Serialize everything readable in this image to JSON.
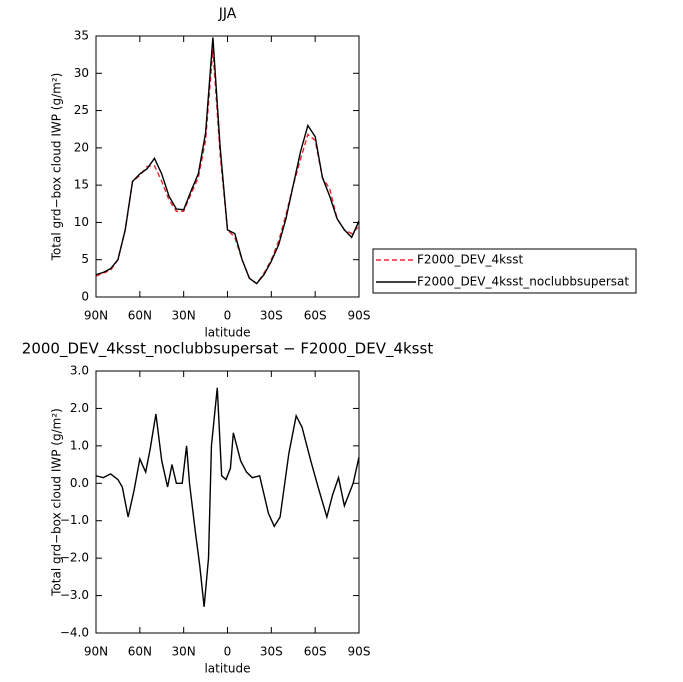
{
  "chart_data": [
    {
      "type": "line",
      "title": "JJA",
      "xlabel": "latitude",
      "ylabel": "Total grd−box cloud IWP (g/m²)",
      "x": [
        90,
        85,
        80,
        75,
        70,
        65,
        60,
        55,
        50,
        45,
        40,
        35,
        30,
        25,
        20,
        15,
        10,
        5,
        0,
        -5,
        -10,
        -15,
        -20,
        -25,
        -30,
        -35,
        -40,
        -45,
        -50,
        -55,
        -60,
        -65,
        -70,
        -75,
        -80,
        -85,
        -90
      ],
      "series": [
        {
          "name": "F2000_DEV_4ksst",
          "color": "#e8262a",
          "style": "dashed",
          "values": [
            2.8,
            3.2,
            3.6,
            5,
            9,
            15.5,
            16.3,
            17.5,
            17.6,
            15.5,
            13,
            11.5,
            11.5,
            13.8,
            16,
            21,
            33.2,
            19,
            9,
            8,
            5,
            2.5,
            1.8,
            3.2,
            5,
            7.5,
            11,
            15,
            18.5,
            21.8,
            21,
            16,
            14.5,
            10.5,
            9,
            8.5,
            9.5
          ]
        },
        {
          "name": "F2000_DEV_4ksst_noclubbsupersat",
          "color": "#000000",
          "style": "solid",
          "values": [
            3.0,
            3.3,
            3.8,
            5.0,
            9.0,
            15.5,
            16.5,
            17.2,
            18.6,
            16.5,
            13.5,
            11.8,
            11.7,
            14.2,
            16.5,
            22,
            34.8,
            20,
            9,
            8.5,
            5,
            2.5,
            1.8,
            3,
            4.8,
            7,
            10.5,
            15,
            19.5,
            23,
            21.5,
            16,
            13.5,
            10.5,
            9,
            8,
            10.2
          ]
        }
      ],
      "xlim": [
        90,
        -90
      ],
      "xticks": [
        {
          "value": 90,
          "label": "90N"
        },
        {
          "value": 60,
          "label": "60N"
        },
        {
          "value": 30,
          "label": "30N"
        },
        0,
        {
          "value": -30,
          "label": "30S"
        },
        {
          "value": -60,
          "label": "60S"
        },
        {
          "value": -90,
          "label": "90S"
        }
      ],
      "ylim": [
        0,
        35
      ],
      "yticks": [
        0,
        5,
        10,
        15,
        20,
        25,
        30,
        35
      ],
      "legend": "right"
    },
    {
      "type": "line",
      "title": "2000_DEV_4ksst_noclubbsupersat − F2000_DEV_4ksst",
      "xlabel": "latitude",
      "ylabel": "Total grd−box cloud IWP (g/m²)",
      "x": [
        90,
        85,
        80,
        75,
        72,
        68,
        64,
        60,
        56,
        53,
        49,
        45,
        41,
        38,
        35,
        31,
        28,
        26,
        22,
        19,
        16,
        13,
        11,
        7,
        4,
        1,
        -2,
        -4,
        -9,
        -13,
        -17,
        -22,
        -28,
        -32,
        -36,
        -42,
        -47,
        -51,
        -57,
        -62,
        -68,
        -72,
        -76,
        -80,
        -86,
        -90
      ],
      "series": [
        {
          "color": "#000000",
          "style": "solid",
          "values": [
            0.2,
            0.15,
            0.25,
            0.1,
            -0.1,
            -0.9,
            -0.2,
            0.65,
            0.3,
            0.9,
            1.85,
            0.6,
            -0.1,
            0.5,
            0.0,
            0.0,
            1.0,
            0.0,
            -1.3,
            -2.2,
            -3.3,
            -2.0,
            1.0,
            2.55,
            0.2,
            0.1,
            0.4,
            1.35,
            0.6,
            0.3,
            0.15,
            0.2,
            -0.8,
            -1.15,
            -0.9,
            0.8,
            1.8,
            1.5,
            0.6,
            -0.1,
            -0.9,
            -0.3,
            0.15,
            -0.6,
            0.0,
            0.7
          ]
        }
      ],
      "xlim": [
        90,
        -90
      ],
      "xticks": [
        {
          "value": 90,
          "label": "90N"
        },
        {
          "value": 60,
          "label": "60N"
        },
        {
          "value": 30,
          "label": "30N"
        },
        0,
        {
          "value": -30,
          "label": "30S"
        },
        {
          "value": -60,
          "label": "60S"
        },
        {
          "value": -90,
          "label": "90S"
        }
      ],
      "ylim": [
        -4,
        3
      ],
      "yticks": [
        {
          "value": -4,
          "label": "−4.0"
        },
        {
          "value": -3,
          "label": "−3.0"
        },
        {
          "value": -2,
          "label": "−2.0"
        },
        {
          "value": -1,
          "label": "−1.0"
        },
        {
          "value": 0,
          "label": "0.0"
        },
        {
          "value": 1,
          "label": "1.0"
        },
        {
          "value": 2,
          "label": "2.0"
        },
        {
          "value": 3,
          "label": "3.0"
        }
      ]
    }
  ]
}
